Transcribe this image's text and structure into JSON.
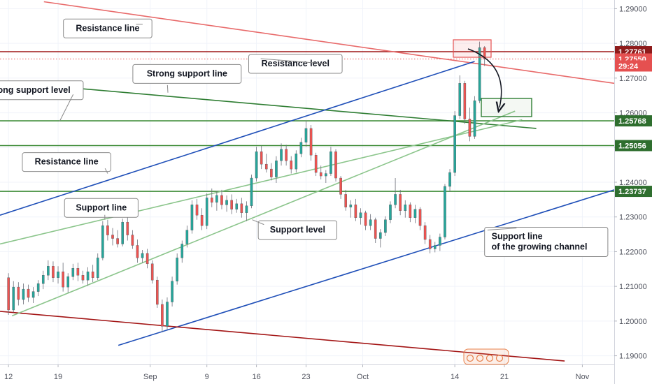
{
  "chart_data": {
    "type": "candlestick",
    "price_axis": {
      "ticks": [
        "1.29000",
        "1.28000",
        "1.27000",
        "1.26000",
        "1.25000",
        "1.24000",
        "1.23000",
        "1.22000",
        "1.21000",
        "1.20000",
        "1.19000"
      ],
      "ylim": [
        1.1875,
        1.2925
      ]
    },
    "time_axis": {
      "ticks": [
        {
          "label": "12",
          "day": 0
        },
        {
          "label": "19",
          "day": 7
        },
        {
          "label": "Sep",
          "day": 20
        },
        {
          "label": "9",
          "day": 28
        },
        {
          "label": "16",
          "day": 35
        },
        {
          "label": "23",
          "day": 42
        },
        {
          "label": "Oct",
          "day": 50
        },
        {
          "label": "14",
          "day": 63
        },
        {
          "label": "21",
          "day": 70
        },
        {
          "label": "Nov",
          "day": 81
        }
      ],
      "xlim": [
        -1.2,
        85.5
      ]
    },
    "price_tags": [
      {
        "value": 1.27761,
        "label": "1.27761",
        "color": "#8e1b1b"
      },
      {
        "value": 1.2755,
        "label": "1.27550",
        "color": "#e55050"
      },
      {
        "value": 1.2735,
        "label": "29:24",
        "color": "#e55050"
      },
      {
        "value": 1.25768,
        "label": "1.25768",
        "color": "#2e6e2e"
      },
      {
        "value": 1.25056,
        "label": "1.25056",
        "color": "#2e6e2e"
      },
      {
        "value": 1.23737,
        "label": "1.23737",
        "color": "#2e6e2e"
      }
    ],
    "horizontal_levels": [
      {
        "value": 1.27761,
        "color": "#a32020",
        "dotted": false
      },
      {
        "value": 1.2755,
        "color": "#e55050",
        "dotted": true
      },
      {
        "value": 1.25768,
        "color": "#3d8b37",
        "dotted": false
      },
      {
        "value": 1.25056,
        "color": "#3d8b37",
        "dotted": false
      },
      {
        "value": 1.23737,
        "color": "#3d8b37",
        "dotted": false
      }
    ],
    "trend_lines": [
      {
        "x1": 5,
        "y1": 1.292,
        "x2": 85.5,
        "y2": 1.2685,
        "color": "#e86a6a"
      },
      {
        "x1": -1.2,
        "y1": 1.269,
        "x2": 74.5,
        "y2": 1.2555,
        "color": "#2e7d32"
      },
      {
        "x1": -1.2,
        "y1": 1.2305,
        "x2": 65.8,
        "y2": 1.2748,
        "color": "#1f4fb8"
      },
      {
        "x1": 15.5,
        "y1": 1.193,
        "x2": 85.5,
        "y2": 1.2378,
        "color": "#1f4fb8"
      },
      {
        "x1": -1.2,
        "y1": 1.2028,
        "x2": 78.5,
        "y2": 1.1885,
        "color": "#a31515"
      },
      {
        "x1": -1.2,
        "y1": 1.2222,
        "x2": 72.5,
        "y2": 1.258,
        "color": "#8bc58b"
      },
      {
        "x1": 0.5,
        "y1": 1.2015,
        "x2": 71.5,
        "y2": 1.2605,
        "color": "#8bc58b"
      }
    ],
    "annotations": [
      {
        "text": "Resistance line",
        "day": 14.0,
        "price": 1.2843
      },
      {
        "text": "Resistance level",
        "day": 40.5,
        "price": 1.2741
      },
      {
        "text": "Strong support line",
        "day": 25.2,
        "price": 1.2712
      },
      {
        "text": "ong support level",
        "day": 3.6,
        "price": 1.2665
      },
      {
        "text": "Resistance line",
        "day": 8.2,
        "price": 1.2458
      },
      {
        "text": "Support line",
        "day": 13.1,
        "price": 1.2326
      },
      {
        "text": "Support level",
        "day": 40.8,
        "price": 1.2262
      },
      {
        "text": "Support line\nof the growing channel",
        "day": 75.9,
        "price": 1.2228
      }
    ],
    "candles": [
      {
        "d": 0.0,
        "o": 1.2125,
        "h": 1.2138,
        "l": 1.2018,
        "c": 1.2032
      },
      {
        "d": 0.7,
        "o": 1.2032,
        "h": 1.2115,
        "l": 1.2025,
        "c": 1.2098
      },
      {
        "d": 1.4,
        "o": 1.2098,
        "h": 1.2112,
        "l": 1.2045,
        "c": 1.2062
      },
      {
        "d": 2.1,
        "o": 1.2062,
        "h": 1.2108,
        "l": 1.2048,
        "c": 1.2092
      },
      {
        "d": 2.8,
        "o": 1.2092,
        "h": 1.2105,
        "l": 1.2055,
        "c": 1.2068
      },
      {
        "d": 3.5,
        "o": 1.2068,
        "h": 1.2098,
        "l": 1.2052,
        "c": 1.2085
      },
      {
        "d": 4.2,
        "o": 1.2085,
        "h": 1.2118,
        "l": 1.2072,
        "c": 1.2108
      },
      {
        "d": 4.9,
        "o": 1.2108,
        "h": 1.2145,
        "l": 1.2092,
        "c": 1.2132
      },
      {
        "d": 5.6,
        "o": 1.2132,
        "h": 1.2175,
        "l": 1.2118,
        "c": 1.2158
      },
      {
        "d": 6.3,
        "o": 1.2158,
        "h": 1.2172,
        "l": 1.2112,
        "c": 1.2125
      },
      {
        "d": 7.0,
        "o": 1.2125,
        "h": 1.2158,
        "l": 1.2108,
        "c": 1.2142
      },
      {
        "d": 7.7,
        "o": 1.2142,
        "h": 1.2168,
        "l": 1.2085,
        "c": 1.2098
      },
      {
        "d": 8.4,
        "o": 1.2098,
        "h": 1.2138,
        "l": 1.2082,
        "c": 1.2128
      },
      {
        "d": 9.1,
        "o": 1.2128,
        "h": 1.2165,
        "l": 1.2118,
        "c": 1.2152
      },
      {
        "d": 9.8,
        "o": 1.2152,
        "h": 1.2168,
        "l": 1.2115,
        "c": 1.2132
      },
      {
        "d": 10.5,
        "o": 1.2132,
        "h": 1.2145,
        "l": 1.2108,
        "c": 1.2118
      },
      {
        "d": 11.2,
        "o": 1.2118,
        "h": 1.2155,
        "l": 1.2102,
        "c": 1.2142
      },
      {
        "d": 11.9,
        "o": 1.2142,
        "h": 1.2162,
        "l": 1.2112,
        "c": 1.2125
      },
      {
        "d": 12.6,
        "o": 1.2125,
        "h": 1.2195,
        "l": 1.2118,
        "c": 1.2182
      },
      {
        "d": 13.3,
        "o": 1.2182,
        "h": 1.2288,
        "l": 1.2175,
        "c": 1.2275
      },
      {
        "d": 14.0,
        "o": 1.2275,
        "h": 1.2292,
        "l": 1.2232,
        "c": 1.2248
      },
      {
        "d": 14.7,
        "o": 1.2248,
        "h": 1.2268,
        "l": 1.2218,
        "c": 1.2238
      },
      {
        "d": 15.4,
        "o": 1.2238,
        "h": 1.2262,
        "l": 1.2212,
        "c": 1.2222
      },
      {
        "d": 16.1,
        "o": 1.2222,
        "h": 1.2295,
        "l": 1.2215,
        "c": 1.2285
      },
      {
        "d": 16.8,
        "o": 1.2285,
        "h": 1.2302,
        "l": 1.2232,
        "c": 1.2248
      },
      {
        "d": 17.5,
        "o": 1.2248,
        "h": 1.2262,
        "l": 1.2208,
        "c": 1.2218
      },
      {
        "d": 18.2,
        "o": 1.2218,
        "h": 1.2235,
        "l": 1.2168,
        "c": 1.2182
      },
      {
        "d": 18.9,
        "o": 1.2182,
        "h": 1.2205,
        "l": 1.2168,
        "c": 1.2195
      },
      {
        "d": 19.6,
        "o": 1.2195,
        "h": 1.2208,
        "l": 1.2152,
        "c": 1.2165
      },
      {
        "d": 20.3,
        "o": 1.2165,
        "h": 1.2175,
        "l": 1.2108,
        "c": 1.2118
      },
      {
        "d": 21.0,
        "o": 1.2118,
        "h": 1.2128,
        "l": 1.2038,
        "c": 1.2048
      },
      {
        "d": 21.7,
        "o": 1.2048,
        "h": 1.2062,
        "l": 1.1968,
        "c": 1.1985
      },
      {
        "d": 22.4,
        "o": 1.1985,
        "h": 1.2068,
        "l": 1.1975,
        "c": 1.2055
      },
      {
        "d": 23.1,
        "o": 1.2055,
        "h": 1.2128,
        "l": 1.2042,
        "c": 1.2115
      },
      {
        "d": 23.8,
        "o": 1.2115,
        "h": 1.2195,
        "l": 1.2105,
        "c": 1.2182
      },
      {
        "d": 24.5,
        "o": 1.2182,
        "h": 1.2232,
        "l": 1.2168,
        "c": 1.2222
      },
      {
        "d": 25.2,
        "o": 1.2222,
        "h": 1.2275,
        "l": 1.2212,
        "c": 1.2262
      },
      {
        "d": 25.9,
        "o": 1.2262,
        "h": 1.2348,
        "l": 1.2252,
        "c": 1.2335
      },
      {
        "d": 26.6,
        "o": 1.2335,
        "h": 1.2352,
        "l": 1.2292,
        "c": 1.2305
      },
      {
        "d": 27.3,
        "o": 1.2305,
        "h": 1.2325,
        "l": 1.2262,
        "c": 1.2275
      },
      {
        "d": 28.0,
        "o": 1.2275,
        "h": 1.2368,
        "l": 1.2265,
        "c": 1.2355
      },
      {
        "d": 28.7,
        "o": 1.2355,
        "h": 1.2382,
        "l": 1.2328,
        "c": 1.2342
      },
      {
        "d": 29.4,
        "o": 1.2342,
        "h": 1.2375,
        "l": 1.2318,
        "c": 1.2362
      },
      {
        "d": 30.1,
        "o": 1.2362,
        "h": 1.2378,
        "l": 1.2322,
        "c": 1.2335
      },
      {
        "d": 30.8,
        "o": 1.2335,
        "h": 1.2362,
        "l": 1.2315,
        "c": 1.2348
      },
      {
        "d": 31.5,
        "o": 1.2348,
        "h": 1.2365,
        "l": 1.2308,
        "c": 1.2322
      },
      {
        "d": 32.2,
        "o": 1.2322,
        "h": 1.2352,
        "l": 1.2312,
        "c": 1.2338
      },
      {
        "d": 32.9,
        "o": 1.2338,
        "h": 1.2355,
        "l": 1.2298,
        "c": 1.2312
      },
      {
        "d": 33.6,
        "o": 1.2312,
        "h": 1.2345,
        "l": 1.2288,
        "c": 1.2332
      },
      {
        "d": 34.3,
        "o": 1.2332,
        "h": 1.2422,
        "l": 1.2325,
        "c": 1.2412
      },
      {
        "d": 35.0,
        "o": 1.2412,
        "h": 1.2502,
        "l": 1.2402,
        "c": 1.2488
      },
      {
        "d": 35.7,
        "o": 1.2488,
        "h": 1.2505,
        "l": 1.2438,
        "c": 1.2452
      },
      {
        "d": 36.4,
        "o": 1.2452,
        "h": 1.2482,
        "l": 1.2428,
        "c": 1.2438
      },
      {
        "d": 37.1,
        "o": 1.2438,
        "h": 1.2455,
        "l": 1.2405,
        "c": 1.2415
      },
      {
        "d": 37.8,
        "o": 1.2415,
        "h": 1.2475,
        "l": 1.2398,
        "c": 1.2462
      },
      {
        "d": 38.5,
        "o": 1.2462,
        "h": 1.2512,
        "l": 1.2448,
        "c": 1.2495
      },
      {
        "d": 39.2,
        "o": 1.2495,
        "h": 1.2508,
        "l": 1.2448,
        "c": 1.2462
      },
      {
        "d": 39.9,
        "o": 1.2462,
        "h": 1.2475,
        "l": 1.2425,
        "c": 1.2438
      },
      {
        "d": 40.6,
        "o": 1.2438,
        "h": 1.2492,
        "l": 1.2428,
        "c": 1.2482
      },
      {
        "d": 41.3,
        "o": 1.2482,
        "h": 1.2528,
        "l": 1.2472,
        "c": 1.2515
      },
      {
        "d": 42.0,
        "o": 1.2515,
        "h": 1.2578,
        "l": 1.2502,
        "c": 1.2555
      },
      {
        "d": 42.7,
        "o": 1.2555,
        "h": 1.2565,
        "l": 1.2462,
        "c": 1.2478
      },
      {
        "d": 43.4,
        "o": 1.2478,
        "h": 1.2485,
        "l": 1.2418,
        "c": 1.2428
      },
      {
        "d": 44.1,
        "o": 1.2428,
        "h": 1.2448,
        "l": 1.2408,
        "c": 1.2418
      },
      {
        "d": 44.8,
        "o": 1.2418,
        "h": 1.2435,
        "l": 1.2398,
        "c": 1.2425
      },
      {
        "d": 45.5,
        "o": 1.2425,
        "h": 1.2502,
        "l": 1.2418,
        "c": 1.2488
      },
      {
        "d": 46.2,
        "o": 1.2488,
        "h": 1.2495,
        "l": 1.2402,
        "c": 1.2412
      },
      {
        "d": 46.9,
        "o": 1.2412,
        "h": 1.2418,
        "l": 1.2352,
        "c": 1.2365
      },
      {
        "d": 47.6,
        "o": 1.2365,
        "h": 1.2378,
        "l": 1.2318,
        "c": 1.2328
      },
      {
        "d": 48.3,
        "o": 1.2328,
        "h": 1.2348,
        "l": 1.2298,
        "c": 1.2335
      },
      {
        "d": 49.0,
        "o": 1.2335,
        "h": 1.2352,
        "l": 1.2288,
        "c": 1.2298
      },
      {
        "d": 49.7,
        "o": 1.2298,
        "h": 1.2325,
        "l": 1.2278,
        "c": 1.2312
      },
      {
        "d": 50.4,
        "o": 1.2312,
        "h": 1.2318,
        "l": 1.2262,
        "c": 1.2275
      },
      {
        "d": 51.1,
        "o": 1.2275,
        "h": 1.2308,
        "l": 1.2262,
        "c": 1.2292
      },
      {
        "d": 51.8,
        "o": 1.2292,
        "h": 1.2298,
        "l": 1.2225,
        "c": 1.2238
      },
      {
        "d": 52.5,
        "o": 1.2238,
        "h": 1.2265,
        "l": 1.2212,
        "c": 1.2255
      },
      {
        "d": 53.2,
        "o": 1.2255,
        "h": 1.2302,
        "l": 1.2245,
        "c": 1.2292
      },
      {
        "d": 53.9,
        "o": 1.2292,
        "h": 1.2345,
        "l": 1.2282,
        "c": 1.2335
      },
      {
        "d": 54.6,
        "o": 1.2335,
        "h": 1.2412,
        "l": 1.2325,
        "c": 1.2365
      },
      {
        "d": 55.3,
        "o": 1.2365,
        "h": 1.2378,
        "l": 1.2305,
        "c": 1.2318
      },
      {
        "d": 56.0,
        "o": 1.2318,
        "h": 1.2348,
        "l": 1.2298,
        "c": 1.2335
      },
      {
        "d": 56.7,
        "o": 1.2335,
        "h": 1.2342,
        "l": 1.2285,
        "c": 1.2298
      },
      {
        "d": 57.4,
        "o": 1.2298,
        "h": 1.2335,
        "l": 1.2282,
        "c": 1.2322
      },
      {
        "d": 58.1,
        "o": 1.2322,
        "h": 1.2328,
        "l": 1.2262,
        "c": 1.2275
      },
      {
        "d": 58.8,
        "o": 1.2275,
        "h": 1.2285,
        "l": 1.2222,
        "c": 1.2235
      },
      {
        "d": 59.5,
        "o": 1.2235,
        "h": 1.2248,
        "l": 1.2195,
        "c": 1.2208
      },
      {
        "d": 60.2,
        "o": 1.2208,
        "h": 1.2228,
        "l": 1.2198,
        "c": 1.2218
      },
      {
        "d": 60.9,
        "o": 1.2218,
        "h": 1.2252,
        "l": 1.2202,
        "c": 1.2242
      },
      {
        "d": 61.6,
        "o": 1.2242,
        "h": 1.2395,
        "l": 1.2235,
        "c": 1.2388
      },
      {
        "d": 62.3,
        "o": 1.2388,
        "h": 1.2438,
        "l": 1.2372,
        "c": 1.2428
      },
      {
        "d": 63.0,
        "o": 1.2428,
        "h": 1.2605,
        "l": 1.2418,
        "c": 1.2592
      },
      {
        "d": 63.7,
        "o": 1.2592,
        "h": 1.2708,
        "l": 1.2582,
        "c": 1.2685
      },
      {
        "d": 64.4,
        "o": 1.2685,
        "h": 1.2692,
        "l": 1.2568,
        "c": 1.2582
      },
      {
        "d": 65.1,
        "o": 1.2582,
        "h": 1.2615,
        "l": 1.2518,
        "c": 1.2532
      },
      {
        "d": 65.8,
        "o": 1.2532,
        "h": 1.2648,
        "l": 1.2525,
        "c": 1.2635
      },
      {
        "d": 66.5,
        "o": 1.2635,
        "h": 1.2805,
        "l": 1.2628,
        "c": 1.2788
      },
      {
        "d": 67.2,
        "o": 1.2788,
        "h": 1.2792,
        "l": 1.2735,
        "c": 1.2755
      }
    ]
  }
}
